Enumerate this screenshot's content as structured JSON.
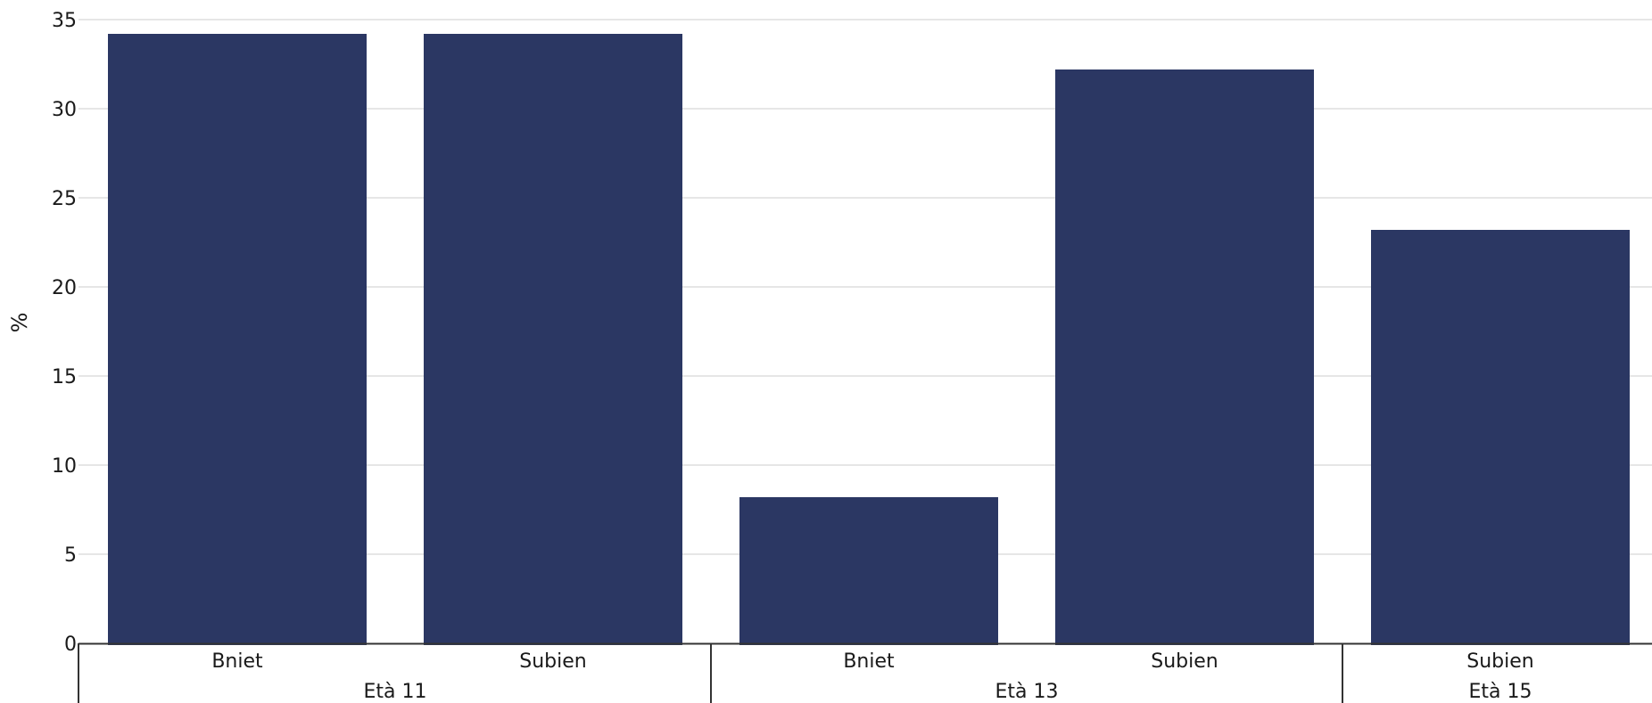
{
  "chart_data": {
    "type": "bar",
    "title": "",
    "xlabel": "",
    "ylabel": "%",
    "ylim": [
      0,
      35
    ],
    "yticks": [
      0,
      5,
      10,
      15,
      20,
      25,
      30,
      35
    ],
    "grid": true,
    "colors": {
      "bar": "#2b3763",
      "grid": "#e6e6e6",
      "axis": "#333333"
    },
    "bars": [
      {
        "category": "Bniet",
        "group": "Età 11",
        "value": 34.2
      },
      {
        "category": "Subien",
        "group": "Età 11",
        "value": 34.2
      },
      {
        "category": "Bniet",
        "group": "Età 13",
        "value": 8.2
      },
      {
        "category": "Subien",
        "group": "Età 13",
        "value": 32.2
      },
      {
        "category": "Subien",
        "group": "Età 15",
        "value": 23.2
      }
    ],
    "groups": [
      {
        "label": "Età 11",
        "count": 2
      },
      {
        "label": "Età 13",
        "count": 2
      },
      {
        "label": "Età 15",
        "count": 1
      }
    ]
  }
}
